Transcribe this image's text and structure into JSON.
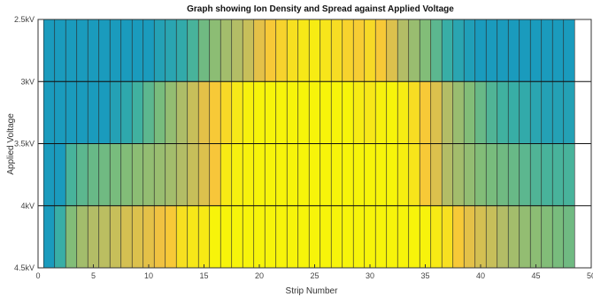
{
  "chart_data": {
    "type": "heatmap",
    "title": "Graph showing Ion Density and Spread against Applied Voltage",
    "xlabel": "Strip Number",
    "ylabel": "Applied Voltage",
    "x_ticks": [
      0,
      5,
      10,
      15,
      20,
      25,
      30,
      35,
      40,
      45,
      50
    ],
    "xlim": [
      0,
      50
    ],
    "y_ticks": [
      "2.5kV",
      "3kV",
      "3.5kV",
      "4kV",
      "4.5kV"
    ],
    "strips": [
      1,
      2,
      3,
      4,
      5,
      6,
      7,
      8,
      9,
      10,
      11,
      12,
      13,
      14,
      15,
      16,
      17,
      18,
      19,
      20,
      21,
      22,
      23,
      24,
      25,
      26,
      27,
      28,
      29,
      30,
      31,
      32,
      33,
      34,
      35,
      36,
      37,
      38,
      39,
      40,
      41,
      42,
      43,
      44,
      45,
      46,
      47,
      48
    ],
    "rows": [
      {
        "voltage": "2.5kV to 3kV",
        "values": [
          0,
          0,
          0,
          0,
          0,
          0,
          0,
          0,
          0,
          0,
          0.05,
          0.08,
          0.12,
          0.2,
          0.3,
          0.38,
          0.45,
          0.5,
          0.55,
          0.62,
          0.7,
          0.75,
          0.82,
          0.88,
          0.92,
          0.85,
          0.8,
          0.75,
          0.72,
          0.78,
          0.7,
          0.6,
          0.5,
          0.42,
          0.35,
          0.25,
          0.15,
          0.08,
          0.03,
          0,
          0,
          0,
          0,
          0,
          0,
          0,
          0,
          0
        ]
      },
      {
        "voltage": "3kV to 3.5kV",
        "values": [
          0,
          0,
          0,
          0,
          0,
          0,
          0.05,
          0.1,
          0.18,
          0.25,
          0.32,
          0.4,
          0.48,
          0.55,
          0.62,
          0.7,
          0.78,
          0.88,
          0.97,
          1,
          1,
          1,
          1,
          1,
          1,
          1,
          1,
          1,
          0.92,
          0.88,
          0.97,
          1,
          0.92,
          0.8,
          0.7,
          0.6,
          0.5,
          0.42,
          0.35,
          0.28,
          0.22,
          0.18,
          0.15,
          0.12,
          0.08,
          0.05,
          0.05,
          0.05
        ]
      },
      {
        "voltage": "3.5kV to 4kV",
        "values": [
          0,
          0,
          0.2,
          0.25,
          0.28,
          0.3,
          0.32,
          0.35,
          0.38,
          0.4,
          0.42,
          0.45,
          0.5,
          0.55,
          0.6,
          0.68,
          0.9,
          0.96,
          0.98,
          1,
          1,
          1,
          1,
          1,
          1,
          1,
          1,
          1,
          1,
          1,
          1,
          1,
          0.95,
          0.85,
          0.7,
          0.6,
          0.5,
          0.45,
          0.4,
          0.35,
          0.32,
          0.3,
          0.28,
          0.25,
          0.22,
          0.2,
          0.2,
          0.2
        ]
      },
      {
        "voltage": "4kV to 4.5kV",
        "values": [
          0,
          0.15,
          0.35,
          0.45,
          0.5,
          0.52,
          0.55,
          0.58,
          0.6,
          0.62,
          0.65,
          0.7,
          0.82,
          0.88,
          0.9,
          1,
          1,
          1,
          1,
          1,
          1,
          1,
          1,
          1,
          1,
          1,
          1,
          1,
          1,
          1,
          1,
          1,
          1,
          1,
          0.98,
          0.9,
          0.82,
          0.7,
          0.62,
          0.58,
          0.55,
          0.5,
          0.45,
          0.4,
          0.38,
          0.35,
          0.32,
          0.3
        ]
      }
    ],
    "colormap": [
      "#1a9bbd",
      "#3bb0a3",
      "#7dbd7a",
      "#b3bd66",
      "#f7c33d",
      "#f7e31d",
      "#f7f40a"
    ],
    "grid": true
  }
}
